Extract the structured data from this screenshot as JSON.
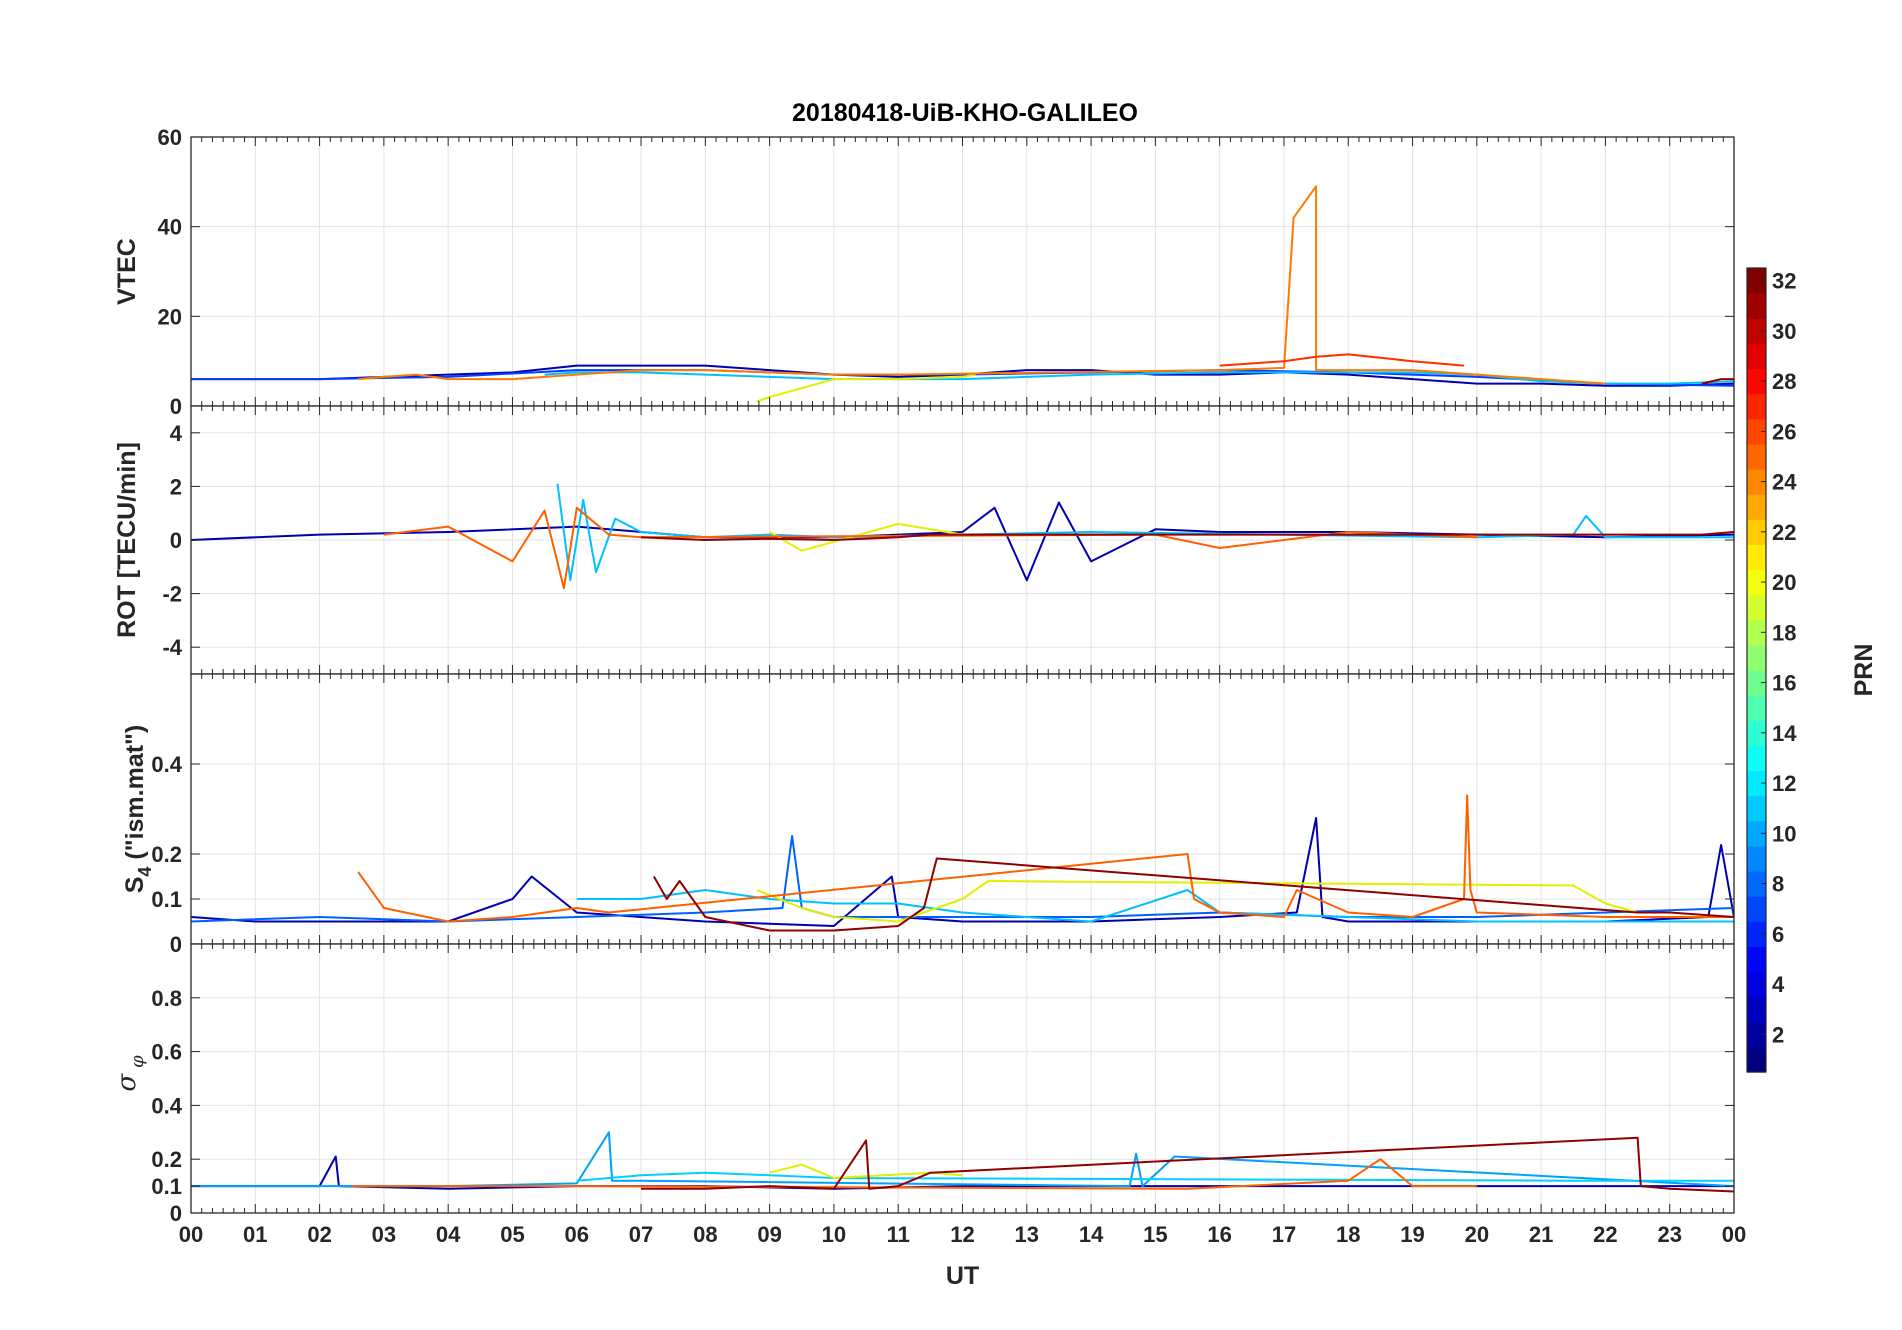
{
  "chart_data": [
    {
      "type": "line",
      "panel": "vtec",
      "title": "20180418-UiB-KHO-GALILEO",
      "ylabel": "VTEC",
      "ylim": [
        0,
        60
      ],
      "yticks": [
        0,
        20,
        40,
        60
      ],
      "xlim": [
        0,
        24
      ],
      "grid": true,
      "series": [
        {
          "prn": 2,
          "color": "#0000b0",
          "x": [
            0,
            2,
            3,
            4,
            5,
            6,
            7,
            8,
            9,
            10,
            11,
            12,
            13,
            14,
            15,
            16,
            17,
            18,
            19,
            20,
            21,
            22,
            23,
            24
          ],
          "y": [
            6,
            6,
            6.5,
            7,
            7.5,
            9,
            9,
            9,
            8,
            7,
            6.5,
            7,
            8,
            8,
            7,
            7,
            7.5,
            7,
            6,
            5,
            5,
            4.5,
            4.5,
            5
          ]
        },
        {
          "prn": 5,
          "color": "#0040ff",
          "x": [
            0,
            2,
            4,
            6,
            8,
            10,
            12,
            14,
            16,
            18,
            20,
            22,
            24
          ],
          "y": [
            6,
            6,
            6.5,
            8,
            8,
            7,
            7,
            7.5,
            8,
            7.5,
            6.5,
            5,
            4.5
          ]
        },
        {
          "prn": 11,
          "color": "#00c0ff",
          "x": [
            5.5,
            6,
            7,
            8,
            9,
            10,
            12,
            14,
            16,
            18,
            19,
            20,
            21,
            22,
            23,
            24
          ],
          "y": [
            7,
            7.5,
            7.5,
            7,
            6.5,
            6,
            6,
            7,
            7.5,
            7.5,
            7.5,
            7,
            5.5,
            5,
            5,
            5.5
          ]
        },
        {
          "prn": 20,
          "color": "#e0f000",
          "x": [
            8.8,
            9,
            9.5,
            10,
            11,
            12,
            12.2
          ],
          "y": [
            1,
            2,
            4,
            6,
            6,
            6.5,
            7
          ]
        },
        {
          "prn": 24,
          "color": "#ff7a00",
          "x": [
            2.6,
            3,
            3.5,
            4,
            5,
            6,
            7,
            8,
            9,
            10,
            11,
            16,
            17,
            17.15,
            17.5,
            17.5,
            18,
            19,
            20,
            21,
            22
          ],
          "y": [
            6,
            6.5,
            7,
            6,
            6,
            7,
            8,
            8,
            7.5,
            7,
            7,
            8,
            8.5,
            42,
            49,
            8,
            8,
            8,
            7,
            6,
            5
          ]
        },
        {
          "prn": 27,
          "color": "#ff3000",
          "x": [
            16,
            17,
            17.5,
            18,
            19,
            19.8
          ],
          "y": [
            9,
            10,
            11,
            11.5,
            10,
            9
          ]
        },
        {
          "prn": 31,
          "color": "#900000",
          "x": [
            23.5,
            23.8,
            24
          ],
          "y": [
            5,
            6,
            6
          ]
        }
      ]
    },
    {
      "type": "line",
      "panel": "rot",
      "ylabel": "ROT [TECU/min]",
      "ylim": [
        -5,
        5
      ],
      "yticks": [
        -4,
        -2,
        0,
        2,
        4
      ],
      "xlim": [
        0,
        24
      ],
      "grid": true,
      "series": [
        {
          "prn": 2,
          "color": "#0000b0",
          "x": [
            0,
            2,
            4,
            6,
            8,
            10,
            12,
            12.5,
            13,
            13.5,
            14,
            15,
            16,
            18,
            20,
            22,
            24
          ],
          "y": [
            0,
            0.2,
            0.3,
            0.5,
            0.1,
            0.1,
            0.3,
            1.2,
            -1.5,
            1.4,
            -0.8,
            0.4,
            0.3,
            0.3,
            0.2,
            0.1,
            0.2
          ]
        },
        {
          "prn": 11,
          "color": "#00c0ff",
          "x": [
            5.7,
            5.9,
            6.1,
            6.3,
            6.6,
            7,
            8,
            9,
            10,
            12,
            14,
            20,
            21.5,
            21.7,
            22,
            24
          ],
          "y": [
            2.1,
            -1.5,
            1.5,
            -1.2,
            0.8,
            0.3,
            0.1,
            0.2,
            0.1,
            0.2,
            0.3,
            0.1,
            0.2,
            0.9,
            0.1,
            0.1
          ]
        },
        {
          "prn": 20,
          "color": "#e0f000",
          "x": [
            9,
            9.5,
            11,
            12
          ],
          "y": [
            0.3,
            -0.4,
            0.6,
            0.2
          ]
        },
        {
          "prn": 24,
          "color": "#ff6000",
          "x": [
            3,
            4,
            5,
            5.5,
            5.8,
            6,
            6.5,
            7,
            15,
            16,
            18,
            20
          ],
          "y": [
            0.2,
            0.5,
            -0.8,
            1.1,
            -1.8,
            1.2,
            0.2,
            0.1,
            0.2,
            -0.3,
            0.3,
            0.1
          ]
        },
        {
          "prn": 31,
          "color": "#900000",
          "x": [
            7,
            8,
            9,
            10,
            11,
            11.5,
            23.5,
            24
          ],
          "y": [
            0.1,
            0,
            0.05,
            0,
            0.1,
            0.2,
            0.2,
            0.3
          ]
        }
      ]
    },
    {
      "type": "line",
      "panel": "s4",
      "ylabel": "S4 (\"ism.mat\")",
      "ylim": [
        0,
        0.6
      ],
      "yticks": [
        0,
        0.1,
        0.2,
        0.4
      ],
      "xlim": [
        0,
        24
      ],
      "grid": true,
      "series": [
        {
          "prn": 2,
          "color": "#0000b0",
          "x": [
            0,
            1,
            2,
            4,
            5,
            5.3,
            6,
            8,
            10,
            10.9,
            11,
            12,
            14,
            16,
            17.2,
            17.5,
            17.6,
            18,
            19,
            20,
            21,
            22,
            23.6,
            23.8,
            24
          ],
          "y": [
            0.06,
            0.05,
            0.05,
            0.05,
            0.1,
            0.15,
            0.07,
            0.05,
            0.04,
            0.15,
            0.06,
            0.05,
            0.05,
            0.06,
            0.07,
            0.28,
            0.06,
            0.05,
            0.05,
            0.05,
            0.05,
            0.05,
            0.06,
            0.22,
            0.06
          ]
        },
        {
          "prn": 7,
          "color": "#0060ff",
          "x": [
            0,
            2,
            4,
            6,
            8,
            9.2,
            9.35,
            9.5,
            10,
            12,
            14,
            16,
            18,
            20,
            22,
            24
          ],
          "y": [
            0.05,
            0.06,
            0.05,
            0.06,
            0.07,
            0.08,
            0.24,
            0.08,
            0.06,
            0.06,
            0.06,
            0.07,
            0.06,
            0.06,
            0.07,
            0.08
          ]
        },
        {
          "prn": 11,
          "color": "#00c0ff",
          "x": [
            6,
            7,
            8,
            9,
            10,
            11,
            12,
            14,
            15.5,
            16,
            18,
            20,
            21.5,
            22,
            24
          ],
          "y": [
            0.1,
            0.1,
            0.12,
            0.1,
            0.09,
            0.09,
            0.07,
            0.05,
            0.12,
            0.07,
            0.06,
            0.05,
            0.05,
            0.05,
            0.05
          ]
        },
        {
          "prn": 20,
          "color": "#e0f000",
          "x": [
            8.8,
            9.5,
            10,
            11,
            12,
            12.4,
            21.5,
            22,
            22.5
          ],
          "y": [
            0.12,
            0.08,
            0.06,
            0.05,
            0.1,
            0.14,
            0.13,
            0.09,
            0.07
          ]
        },
        {
          "prn": 24,
          "color": "#ff6000",
          "x": [
            2.6,
            3,
            4,
            5,
            6,
            6.5,
            15.5,
            15.6,
            16,
            17,
            17.2,
            18,
            19,
            19.8,
            19.85,
            19.9,
            20,
            22,
            24
          ],
          "y": [
            0.16,
            0.08,
            0.05,
            0.06,
            0.08,
            0.07,
            0.2,
            0.1,
            0.07,
            0.06,
            0.12,
            0.07,
            0.06,
            0.1,
            0.33,
            0.12,
            0.07,
            0.06,
            0.06
          ]
        },
        {
          "prn": 31,
          "color": "#900000",
          "x": [
            7.2,
            7.4,
            7.6,
            8,
            9,
            10,
            11,
            11.4,
            11.6,
            22.5,
            23,
            24
          ],
          "y": [
            0.15,
            0.1,
            0.14,
            0.06,
            0.03,
            0.03,
            0.04,
            0.08,
            0.19,
            0.07,
            0.07,
            0.06
          ]
        }
      ]
    },
    {
      "type": "line",
      "panel": "sigma_phi",
      "ylabel": "σ φ",
      "xlabel": "UT",
      "ylim": [
        0,
        1
      ],
      "yticks": [
        0,
        0.1,
        0.2,
        0.4,
        0.6,
        0.8
      ],
      "xlim": [
        0,
        24
      ],
      "xticklabels": [
        "00",
        "01",
        "02",
        "03",
        "04",
        "05",
        "06",
        "07",
        "08",
        "09",
        "10",
        "11",
        "12",
        "13",
        "14",
        "15",
        "16",
        "17",
        "18",
        "19",
        "20",
        "21",
        "22",
        "23",
        "00"
      ],
      "grid": true,
      "series": [
        {
          "prn": 2,
          "color": "#0000b0",
          "x": [
            0,
            2,
            2.25,
            2.3,
            4,
            6,
            8,
            10,
            12,
            14,
            16,
            18,
            20,
            22,
            24
          ],
          "y": [
            0.1,
            0.1,
            0.21,
            0.1,
            0.09,
            0.1,
            0.1,
            0.09,
            0.1,
            0.1,
            0.1,
            0.1,
            0.1,
            0.1,
            0.1
          ]
        },
        {
          "prn": 8,
          "color": "#00a0ff",
          "x": [
            0,
            2,
            4,
            6,
            6.5,
            6.55,
            7,
            14.6,
            14.7,
            14.8,
            15.3,
            24
          ],
          "y": [
            0.1,
            0.1,
            0.1,
            0.11,
            0.3,
            0.12,
            0.12,
            0.1,
            0.22,
            0.1,
            0.21,
            0.1
          ]
        },
        {
          "prn": 11,
          "color": "#00d0ff",
          "x": [
            6,
            7,
            8,
            9,
            10,
            21.5,
            22,
            24
          ],
          "y": [
            0.12,
            0.14,
            0.15,
            0.14,
            0.13,
            0.12,
            0.12,
            0.12
          ]
        },
        {
          "prn": 20,
          "color": "#e0f000",
          "x": [
            9,
            9.5,
            10,
            11.5,
            12
          ],
          "y": [
            0.15,
            0.18,
            0.13,
            0.15,
            0.14
          ]
        },
        {
          "prn": 24,
          "color": "#ff6000",
          "x": [
            2.5,
            4,
            6,
            15.5,
            18,
            18.5,
            19,
            20
          ],
          "y": [
            0.1,
            0.1,
            0.1,
            0.09,
            0.12,
            0.2,
            0.1,
            0.1
          ]
        },
        {
          "prn": 31,
          "color": "#900000",
          "x": [
            7,
            8,
            9,
            10,
            10.5,
            10.55,
            11,
            11.5,
            22.5,
            22.55,
            23,
            24
          ],
          "y": [
            0.09,
            0.09,
            0.1,
            0.09,
            0.27,
            0.09,
            0.1,
            0.15,
            0.28,
            0.1,
            0.09,
            0.08
          ]
        }
      ]
    }
  ],
  "colorbar": {
    "label": "PRN",
    "range": [
      1,
      32
    ],
    "ticks": [
      2,
      4,
      6,
      8,
      10,
      12,
      14,
      16,
      18,
      20,
      22,
      24,
      26,
      28,
      30,
      32
    ],
    "colormap": "jet"
  }
}
